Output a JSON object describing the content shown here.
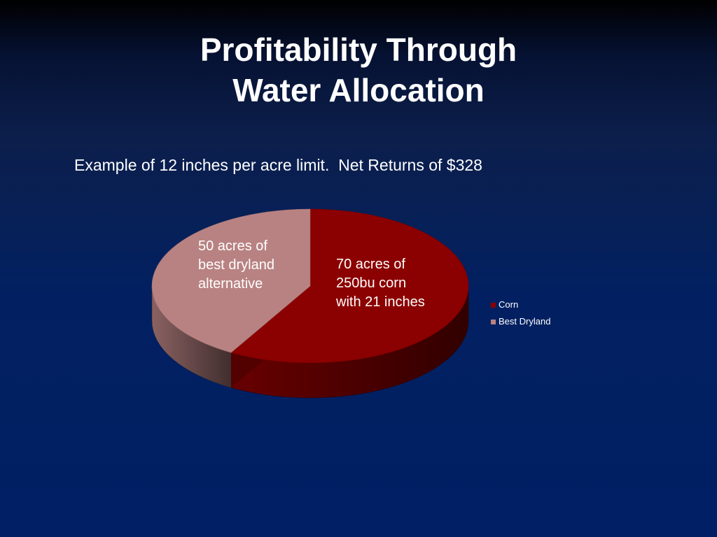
{
  "slide": {
    "title_line1": "Profitability Through",
    "title_line2": "Water Allocation",
    "subtitle": "Example of 12 inches per acre limit.  Net Returns of $328"
  },
  "chart_data": {
    "type": "pie",
    "style": "3d",
    "categories": [
      "Corn",
      "Best Dryland"
    ],
    "values": [
      70,
      50
    ],
    "units": "acres",
    "colors": [
      "#8b0000",
      "#b98282"
    ],
    "slice_labels": [
      [
        "70 acres of",
        "250bu corn",
        "with 21 inches"
      ],
      [
        "50 acres of",
        "best dryland",
        "alternative"
      ]
    ],
    "legend": {
      "position": "right",
      "entries": [
        "Corn",
        "Best Dryland"
      ]
    }
  }
}
